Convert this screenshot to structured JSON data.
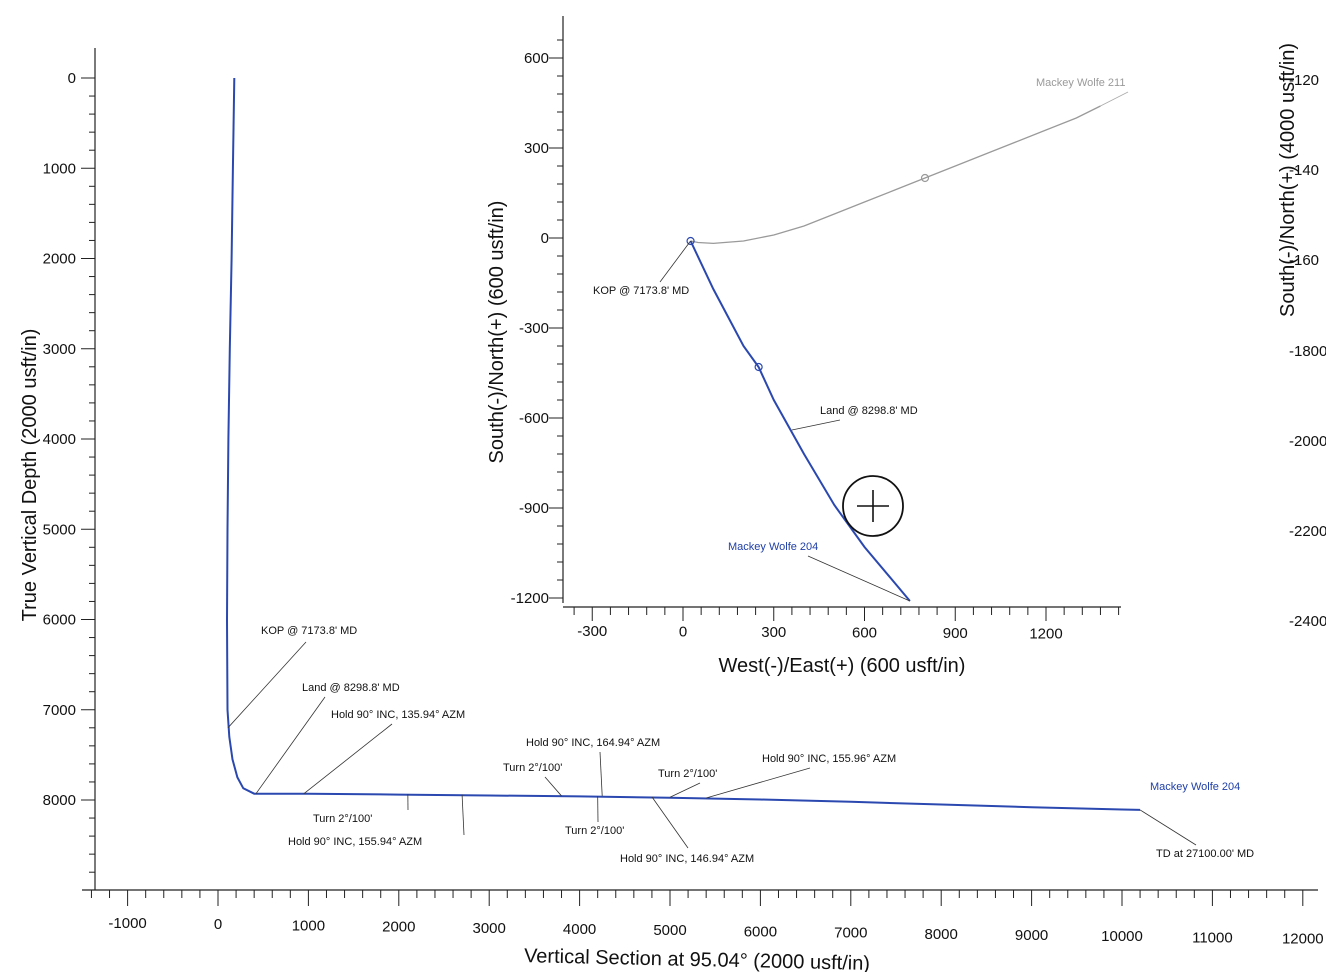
{
  "chart_data": [
    {
      "id": "vertical-section",
      "type": "line",
      "xlabel": "Vertical Section at 95.04° (2000 usft/in)",
      "ylabel": "True Vertical Depth (2000 usft/in)",
      "xlim": [
        -1400,
        12000
      ],
      "ylim": [
        9000,
        -300
      ],
      "y_inverted": true,
      "xticks": [
        -1000,
        0,
        1000,
        2000,
        3000,
        4000,
        5000,
        6000,
        7000,
        8000,
        9000,
        10000,
        11000,
        12000
      ],
      "yticks": [
        0,
        1000,
        2000,
        3000,
        4000,
        5000,
        6000,
        7000,
        8000
      ],
      "series": [
        {
          "name": "Mackey Wolfe 204",
          "color": "#2a48b0",
          "x": [
            180,
            165,
            150,
            130,
            115,
            105,
            100,
            105,
            125,
            160,
            215,
            280,
            400,
            1000,
            2000,
            3000,
            4000,
            5000,
            6000,
            7000,
            8000,
            9000,
            10000,
            10200
          ],
          "y": [
            0,
            1000,
            2000,
            3000,
            4000,
            5000,
            6000,
            7000,
            7300,
            7550,
            7750,
            7870,
            7930,
            7930,
            7940,
            7950,
            7960,
            7975,
            7995,
            8020,
            8050,
            8080,
            8105,
            8110
          ]
        }
      ],
      "annotations": [
        {
          "text": "KOP @ 7173.8' MD",
          "x": 110,
          "y": 7200
        },
        {
          "text": "Land @ 8298.8' MD",
          "x": 420,
          "y": 7930
        },
        {
          "text": "Hold 90° INC, 135.94° AZM",
          "x": 950,
          "y": 7930
        },
        {
          "text": "Turn 2°/100'",
          "x": 2100,
          "y": 7935
        },
        {
          "text": "Hold 90° INC, 155.94° AZM",
          "x": 2700,
          "y": 7940
        },
        {
          "text": "Hold 90° INC, 164.94° AZM",
          "x": 4250,
          "y": 7955
        },
        {
          "text": "Turn 2°/100'",
          "x": 3800,
          "y": 7955
        },
        {
          "text": "Turn 2°/100'",
          "x": 4200,
          "y": 7958
        },
        {
          "text": "Hold 90° INC, 146.94° AZM",
          "x": 4800,
          "y": 7965
        },
        {
          "text": "Turn 2°/100'",
          "x": 5000,
          "y": 7970
        },
        {
          "text": "Hold 90° INC, 155.96° AZM",
          "x": 5400,
          "y": 7978
        },
        {
          "text": "Mackey Wolfe 204",
          "x": 10200,
          "y": 8110
        },
        {
          "text": "TD at 27100.00' MD",
          "x": 10200,
          "y": 8110
        }
      ]
    },
    {
      "id": "plan-view-inset",
      "type": "line",
      "xlabel": "West(-)/East(+) (600 usft/in)",
      "ylabel": "South(-)/North(+) (600 usft/in)",
      "xlim": [
        -390,
        1460
      ],
      "ylim": [
        -1210,
        700
      ],
      "xticks": [
        -300,
        0,
        300,
        600,
        900,
        1200
      ],
      "yticks": [
        600,
        300,
        0,
        -300,
        -600,
        -900,
        -1200
      ],
      "series": [
        {
          "name": "Mackey Wolfe 211",
          "color": "#9a9a9a",
          "x": [
            25,
            50,
            100,
            200,
            300,
            400,
            500,
            600,
            700,
            800,
            900,
            1000,
            1100,
            1200,
            1300,
            1380
          ],
          "y": [
            -10,
            -15,
            -18,
            -10,
            10,
            40,
            80,
            120,
            160,
            200,
            240,
            280,
            320,
            360,
            400,
            440
          ]
        },
        {
          "name": "Mackey Wolfe 204",
          "color": "#2a48b0",
          "x": [
            25,
            100,
            200,
            250,
            300,
            400,
            500,
            600,
            700,
            750
          ],
          "y": [
            -10,
            -170,
            -360,
            -430,
            -540,
            -720,
            -890,
            -1030,
            -1150,
            -1210
          ]
        }
      ],
      "annotations": [
        {
          "text": "Mackey Wolfe 211",
          "x": 1380,
          "y": 440
        },
        {
          "text": "KOP @ 7173.8' MD",
          "x": 25,
          "y": -10
        },
        {
          "text": "Land @ 8298.8' MD",
          "x": 360,
          "y": -640
        },
        {
          "text": "Mackey Wolfe 204",
          "x": 750,
          "y": -1210
        }
      ]
    },
    {
      "id": "right-partial-axis",
      "type": "line",
      "ylabel": "South(-)/North(+) (4000 usft/in)",
      "ytick_labels": [
        "-120",
        "-140",
        "-160",
        "-1800",
        "-2000",
        "-2200",
        "-2400"
      ]
    }
  ]
}
